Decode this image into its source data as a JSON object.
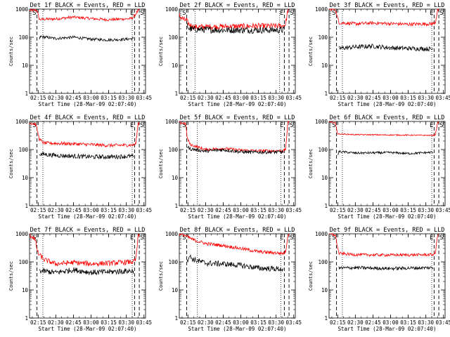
{
  "chart_data": [
    {
      "type": "line",
      "title": "Det 1f BLACK = Events, RED = LLD",
      "xlabel": "Start Time (28-Mar-09 02:07:40)",
      "ylabel": "Counts/sec",
      "yscale": "log",
      "ylim": [
        1,
        1000
      ],
      "ytick_labels": [
        "1",
        "10",
        "100",
        "1000"
      ],
      "xlim": [
        "02:07:40",
        "03:46:20"
      ],
      "xtick_labels": [
        "02:15",
        "02:30",
        "02:45",
        "03:00",
        "03:15",
        "03:30",
        "03:45"
      ],
      "markers": {
        "S_left": "02:14:00",
        "E": "03:37:00",
        "S_right": "03:41:00"
      },
      "dotted_lines": [
        "02:19:00",
        "03:35:00"
      ],
      "series": [
        {
          "color": "#ff0000",
          "noise": 0.05,
          "x": [
            "02:07:40",
            "02:14:00",
            "02:16:00",
            "02:30:00",
            "02:45:00",
            "03:00:00",
            "03:15:00",
            "03:30:00",
            "03:34:00",
            "03:36:00",
            "03:40:00",
            "03:41:00"
          ],
          "y": [
            900,
            900,
            430,
            450,
            520,
            460,
            420,
            450,
            460,
            520,
            880,
            900
          ]
        },
        {
          "color": "#000000",
          "noise": 0.05,
          "x": [
            "02:16:00",
            "02:17:00",
            "02:30:00",
            "02:45:00",
            "03:00:00",
            "03:15:00",
            "03:30:00",
            "03:36:00"
          ],
          "y": [
            85,
            105,
            90,
            100,
            85,
            80,
            85,
            90
          ]
        }
      ]
    },
    {
      "type": "line",
      "title": "Det 2f BLACK = Events, RED = LLD",
      "xlabel": "Start Time (28-Mar-09 02:07:40)",
      "ylabel": "Counts/sec",
      "yscale": "log",
      "ylim": [
        1,
        1000
      ],
      "ytick_labels": [
        "1",
        "10",
        "100",
        "1000"
      ],
      "xlim": [
        "02:07:40",
        "03:46:20"
      ],
      "xtick_labels": [
        "02:15",
        "02:30",
        "02:45",
        "03:00",
        "03:15",
        "03:30",
        "03:45"
      ],
      "markers": {
        "S_left": "02:14:00",
        "E": "03:37:00",
        "S_right": "03:41:00"
      },
      "dotted_lines": [
        "02:21:00",
        "03:33:00"
      ],
      "series": [
        {
          "color": "#ff0000",
          "noise": 0.1,
          "x": [
            "02:07:40",
            "02:09:00",
            "02:12:00",
            "02:14:00",
            "02:15:30",
            "02:20:00",
            "02:45:00",
            "03:15:00",
            "03:36:00",
            "03:38:00",
            "03:40:00",
            "03:41:00"
          ],
          "y": [
            600,
            500,
            420,
            380,
            300,
            230,
            240,
            250,
            250,
            300,
            900,
            1000
          ]
        },
        {
          "color": "#000000",
          "noise": 0.12,
          "x": [
            "02:14:00",
            "02:16:00",
            "02:20:00",
            "02:45:00",
            "03:15:00",
            "03:36:00",
            "03:37:00"
          ],
          "y": [
            280,
            200,
            190,
            180,
            180,
            180,
            200
          ]
        }
      ]
    },
    {
      "type": "line",
      "title": "Det 3f BLACK = Events, RED = LLD",
      "xlabel": "Start Time (28-Mar-09 02:07:40)",
      "ylabel": "Counts/sec",
      "yscale": "log",
      "ylim": [
        1,
        1000
      ],
      "ytick_labels": [
        "1",
        "10",
        "100",
        "1000"
      ],
      "xlim": [
        "02:07:40",
        "03:46:20"
      ],
      "xtick_labels": [
        "02:15",
        "02:30",
        "02:45",
        "03:00",
        "03:15",
        "03:30",
        "03:45"
      ],
      "markers": {
        "S_left": "02:14:00",
        "E": "03:37:00",
        "S_right": "03:41:00"
      },
      "dotted_lines": [
        "02:19:00",
        "03:35:00"
      ],
      "series": [
        {
          "color": "#ff0000",
          "noise": 0.06,
          "x": [
            "02:07:40",
            "02:13:00",
            "02:16:00",
            "02:30:00",
            "02:45:00",
            "03:15:00",
            "03:36:00",
            "03:38:00",
            "03:40:00",
            "03:41:00"
          ],
          "y": [
            1000,
            1000,
            330,
            300,
            320,
            290,
            300,
            340,
            900,
            1000
          ]
        },
        {
          "color": "#000000",
          "noise": 0.08,
          "x": [
            "02:16:00",
            "02:30:00",
            "02:45:00",
            "03:00:00",
            "03:15:00",
            "03:36:00"
          ],
          "y": [
            40,
            45,
            48,
            42,
            40,
            38
          ]
        }
      ]
    },
    {
      "type": "line",
      "title": "Det 4f BLACK = Events, RED = LLD",
      "xlabel": "Start Time (28-Mar-09 02:07:40)",
      "ylabel": "Counts/sec",
      "yscale": "log",
      "ylim": [
        1,
        1000
      ],
      "ytick_labels": [
        "1",
        "10",
        "100",
        "1000"
      ],
      "xlim": [
        "02:07:40",
        "03:46:20"
      ],
      "xtick_labels": [
        "02:15",
        "02:30",
        "02:45",
        "03:00",
        "03:15",
        "03:30",
        "03:45"
      ],
      "markers": {
        "S_left": "02:14:00",
        "E": "03:37:00",
        "S_right": "03:41:00"
      },
      "dotted_lines": [
        "02:19:00",
        "03:35:00"
      ],
      "series": [
        {
          "color": "#ff0000",
          "noise": 0.06,
          "x": [
            "02:07:40",
            "02:13:00",
            "02:16:00",
            "02:20:00",
            "02:45:00",
            "03:15:00",
            "03:36:00",
            "03:38:00",
            "03:40:00",
            "03:41:00"
          ],
          "y": [
            900,
            800,
            230,
            170,
            160,
            140,
            145,
            160,
            850,
            900
          ]
        },
        {
          "color": "#000000",
          "noise": 0.08,
          "x": [
            "02:16:00",
            "02:30:00",
            "02:45:00",
            "03:00:00",
            "03:15:00",
            "03:36:00"
          ],
          "y": [
            70,
            62,
            58,
            55,
            55,
            58
          ]
        }
      ]
    },
    {
      "type": "line",
      "title": "Det 5f BLACK = Events, RED = LLD",
      "xlabel": "Start Time (28-Mar-09 02:07:40)",
      "ylabel": "Counts/sec",
      "yscale": "log",
      "ylim": [
        1,
        1000
      ],
      "ytick_labels": [
        "1",
        "10",
        "100",
        "1000"
      ],
      "xlim": [
        "02:07:40",
        "03:46:20"
      ],
      "xtick_labels": [
        "02:15",
        "02:30",
        "02:45",
        "03:00",
        "03:15",
        "03:30",
        "03:45"
      ],
      "markers": {
        "S_left": "02:14:00",
        "E": "03:37:00",
        "S_right": "03:41:00"
      },
      "dotted_lines": [
        "02:23:00",
        "03:34:00"
      ],
      "series": [
        {
          "color": "#ff0000",
          "noise": 0.05,
          "x": [
            "02:07:40",
            "02:13:00",
            "02:14:30",
            "02:17:00",
            "02:30:00",
            "02:45:00",
            "03:00:00",
            "03:15:00",
            "03:36:00",
            "03:38:00",
            "03:40:00",
            "03:41:00"
          ],
          "y": [
            900,
            850,
            250,
            150,
            100,
            110,
            95,
            90,
            90,
            100,
            900,
            1000
          ]
        },
        {
          "color": "#000000",
          "noise": 0.06,
          "x": [
            "02:14:00",
            "02:17:00",
            "02:30:00",
            "02:45:00",
            "03:00:00",
            "03:15:00",
            "03:36:00"
          ],
          "y": [
            130,
            105,
            88,
            98,
            82,
            80,
            82
          ]
        }
      ]
    },
    {
      "type": "line",
      "title": "Det 6f BLACK = Events, RED = LLD",
      "xlabel": "Start Time (28-Mar-09 02:07:40)",
      "ylabel": "Counts/sec",
      "yscale": "log",
      "ylim": [
        1,
        1000
      ],
      "ytick_labels": [
        "1",
        "10",
        "100",
        "1000"
      ],
      "xlim": [
        "02:07:40",
        "03:46:20"
      ],
      "xtick_labels": [
        "02:15",
        "02:30",
        "02:45",
        "03:00",
        "03:15",
        "03:30",
        "03:45"
      ],
      "markers": {
        "S_left": "02:14:00",
        "E": "03:37:00",
        "S_right": "03:41:00"
      },
      "dotted_lines": [
        "02:19:00",
        "03:35:00"
      ],
      "series": [
        {
          "color": "#ff0000",
          "noise": 0.02,
          "x": [
            "02:07:40",
            "02:13:00",
            "02:15:00",
            "02:30:00",
            "03:00:00",
            "03:36:00",
            "03:38:00",
            "03:40:00",
            "03:41:00"
          ],
          "y": [
            950,
            900,
            360,
            340,
            330,
            320,
            340,
            900,
            950
          ]
        },
        {
          "color": "#000000",
          "noise": 0.04,
          "x": [
            "02:15:00",
            "02:16:00",
            "02:30:00",
            "03:00:00",
            "03:15:00",
            "03:36:00"
          ],
          "y": [
            60,
            85,
            75,
            78,
            72,
            80
          ]
        }
      ]
    },
    {
      "type": "line",
      "title": "Det 7f BLACK = Events, RED = LLD",
      "xlabel": "Start Time (28-Mar-09 02:07:40)",
      "ylabel": "Counts/sec",
      "yscale": "log",
      "ylim": [
        1,
        1000
      ],
      "ytick_labels": [
        "1",
        "10",
        "100",
        "1000"
      ],
      "xlim": [
        "02:07:40",
        "03:46:20"
      ],
      "xtick_labels": [
        "02:15",
        "02:30",
        "02:45",
        "03:00",
        "03:15",
        "03:30",
        "03:45"
      ],
      "markers": {
        "S_left": "02:14:00",
        "E": "03:37:00",
        "S_right": "03:41:00"
      },
      "dotted_lines": [
        "02:19:00",
        "03:35:00"
      ],
      "series": [
        {
          "color": "#ff0000",
          "noise": 0.09,
          "x": [
            "02:07:40",
            "02:12:00",
            "02:15:00",
            "02:20:00",
            "02:30:00",
            "02:45:00",
            "03:00:00",
            "03:15:00",
            "03:36:00",
            "03:38:00",
            "03:40:00",
            "03:41:00"
          ],
          "y": [
            900,
            700,
            200,
            120,
            85,
            95,
            85,
            90,
            100,
            120,
            800,
            900
          ]
        },
        {
          "color": "#000000",
          "noise": 0.1,
          "x": [
            "02:16:00",
            "02:30:00",
            "02:45:00",
            "03:00:00",
            "03:15:00",
            "03:36:00"
          ],
          "y": [
            48,
            42,
            52,
            42,
            44,
            48
          ]
        }
      ]
    },
    {
      "type": "line",
      "title": "Det 8f BLACK = Events, RED = LLD",
      "xlabel": "Start Time (28-Mar-09 02:07:40)",
      "ylabel": "Counts/sec",
      "yscale": "log",
      "ylim": [
        1,
        1000
      ],
      "ytick_labels": [
        "1",
        "10",
        "100",
        "1000"
      ],
      "xlim": [
        "02:07:40",
        "03:46:20"
      ],
      "xtick_labels": [
        "02:15",
        "02:30",
        "02:45",
        "03:00",
        "03:15",
        "03:30",
        "03:45"
      ],
      "markers": {
        "S_left": "02:14:00",
        "E": "03:37:00",
        "S_right": "03:41:00"
      },
      "dotted_lines": [
        "02:23:00",
        "03:34:00"
      ],
      "series": [
        {
          "color": "#ff0000",
          "noise": 0.06,
          "x": [
            "02:07:40",
            "02:12:00",
            "02:14:00",
            "02:20:00",
            "02:30:00",
            "02:45:00",
            "03:00:00",
            "03:15:00",
            "03:36:00",
            "03:38:00",
            "03:40:00",
            "03:41:00"
          ],
          "y": [
            1000,
            900,
            800,
            600,
            450,
            380,
            300,
            230,
            200,
            220,
            900,
            1000
          ]
        },
        {
          "color": "#000000",
          "noise": 0.1,
          "x": [
            "02:14:00",
            "02:16:00",
            "02:20:00",
            "02:30:00",
            "02:45:00",
            "03:00:00",
            "03:15:00",
            "03:36:00"
          ],
          "y": [
            100,
            160,
            120,
            90,
            85,
            75,
            60,
            55
          ]
        }
      ]
    },
    {
      "type": "line",
      "title": "Det 9f BLACK = Events, RED = LLD",
      "xlabel": "Start Time (28-Mar-09 02:07:40)",
      "ylabel": "Counts/sec",
      "yscale": "log",
      "ylim": [
        1,
        1000
      ],
      "ytick_labels": [
        "1",
        "10",
        "100",
        "1000"
      ],
      "xlim": [
        "02:07:40",
        "03:46:20"
      ],
      "xtick_labels": [
        "02:15",
        "02:30",
        "02:45",
        "03:00",
        "03:15",
        "03:30",
        "03:45"
      ],
      "markers": {
        "S_left": "02:14:00",
        "E": "03:37:00",
        "S_right": "03:41:00"
      },
      "dotted_lines": [
        "02:19:00",
        "03:35:00"
      ],
      "series": [
        {
          "color": "#ff0000",
          "noise": 0.05,
          "x": [
            "02:07:40",
            "02:13:00",
            "02:16:00",
            "02:30:00",
            "03:00:00",
            "03:36:00",
            "03:38:00",
            "03:40:00",
            "03:41:00"
          ],
          "y": [
            1000,
            900,
            200,
            180,
            175,
            180,
            200,
            900,
            1000
          ]
        },
        {
          "color": "#000000",
          "noise": 0.06,
          "x": [
            "02:16:00",
            "02:30:00",
            "03:00:00",
            "03:15:00",
            "03:36:00"
          ],
          "y": [
            60,
            62,
            58,
            60,
            62
          ]
        }
      ]
    }
  ]
}
